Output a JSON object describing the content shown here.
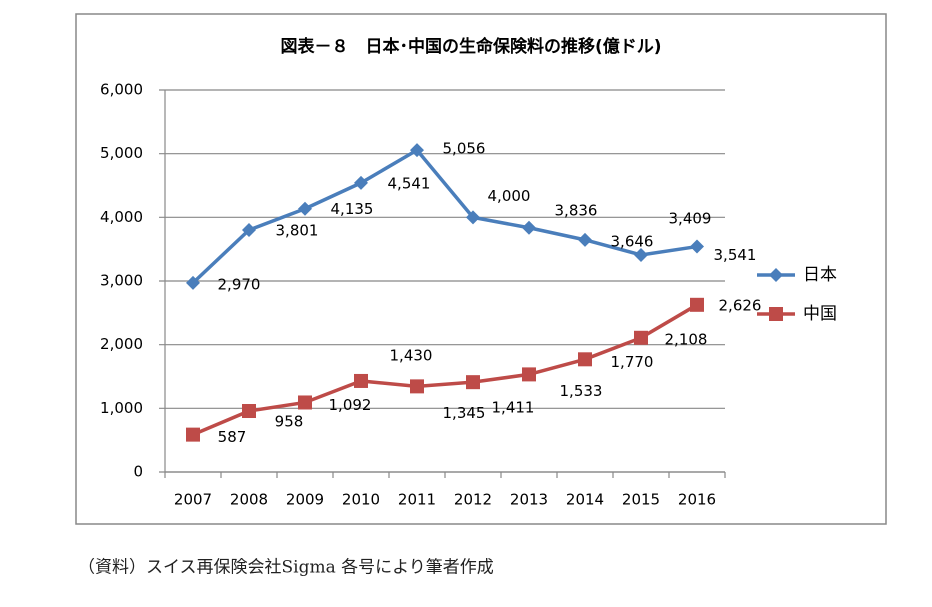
{
  "chart_data": {
    "type": "line",
    "title": "図表－８　日本･中国の生命保険料の推移(億ドル)",
    "categories": [
      "2007",
      "2008",
      "2009",
      "2010",
      "2011",
      "2012",
      "2013",
      "2014",
      "2015",
      "2016"
    ],
    "series": [
      {
        "name": "日本",
        "color": "#4a7ebb",
        "marker": "diamond",
        "values": [
          2970,
          3801,
          4135,
          4541,
          5056,
          4000,
          3836,
          3646,
          3409,
          3541
        ],
        "value_labels": [
          "2,970",
          "3,801",
          "4,135",
          "4,541",
          "5,056",
          "4,000",
          "3,836",
          "3,646",
          "3,409",
          "3,541"
        ]
      },
      {
        "name": "中国",
        "color": "#be4b48",
        "marker": "square",
        "values": [
          587,
          958,
          1092,
          1430,
          1345,
          1411,
          1533,
          1770,
          2108,
          2626
        ],
        "value_labels": [
          "587",
          "958",
          "1,092",
          "1,430",
          "1,345",
          "1,411",
          "1,533",
          "1,770",
          "2,108",
          "2,626"
        ]
      }
    ],
    "ylim": [
      0,
      6000
    ],
    "yticks": [
      0,
      {
        "value": 1000,
        "label": "1,000"
      },
      {
        "value": 2000,
        "label": "2,000"
      },
      {
        "value": 3000,
        "label": "3,000"
      },
      {
        "value": 4000,
        "label": "4,000"
      },
      {
        "value": 5000,
        "label": "5,000"
      },
      {
        "value": 6000,
        "label": "6,000"
      }
    ],
    "grid": true,
    "legend": "right"
  },
  "source": "（資料）スイス再保険会社Sigma 各号により筆者作成"
}
